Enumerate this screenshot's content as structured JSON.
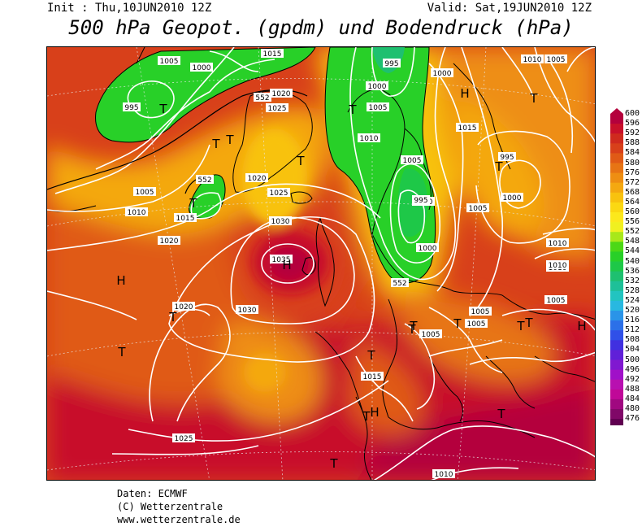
{
  "header": {
    "init": "Init : Thu,10JUN2010 12Z",
    "valid": "Valid: Sat,19JUN2010 12Z",
    "title": "500 hPa Geopot. (gpdm) und Bodendruck (hPa)"
  },
  "legend": {
    "values": [
      "600",
      "596",
      "592",
      "588",
      "584",
      "580",
      "576",
      "572",
      "568",
      "564",
      "560",
      "556",
      "552",
      "548",
      "544",
      "540",
      "536",
      "532",
      "528",
      "524",
      "520",
      "516",
      "512",
      "508",
      "504",
      "500",
      "496",
      "492",
      "488",
      "484",
      "480",
      "476"
    ],
    "colors": [
      "#b4003c",
      "#c8102a",
      "#cf2a1e",
      "#d8401a",
      "#e05a16",
      "#e77414",
      "#ee8e12",
      "#f4a810",
      "#f8c20e",
      "#fbd812",
      "#fce81c",
      "#f0f020",
      "#a8e81a",
      "#4cd816",
      "#28d028",
      "#1ec848",
      "#1ec070",
      "#1ec098",
      "#22c4c0",
      "#28b8e0",
      "#2a94e8",
      "#2c70e8",
      "#3050e8",
      "#4030e0",
      "#6020d8",
      "#8018d0",
      "#a010c8",
      "#b810b0",
      "#c00898",
      "#a00880",
      "#800868",
      "#600050"
    ]
  },
  "map": {
    "pressure_labels": [
      {
        "text": "1005"
      },
      {
        "text": "1000"
      },
      {
        "text": "1015"
      },
      {
        "text": "995"
      },
      {
        "text": "1020"
      },
      {
        "text": "1025"
      },
      {
        "text": "552"
      },
      {
        "text": "552"
      },
      {
        "text": "1000"
      },
      {
        "text": "1005"
      },
      {
        "text": "1010"
      },
      {
        "text": "1015"
      },
      {
        "text": "1020"
      },
      {
        "text": "1025"
      },
      {
        "text": "1030"
      },
      {
        "text": "1035"
      },
      {
        "text": "1030"
      },
      {
        "text": "1020"
      },
      {
        "text": "1020"
      },
      {
        "text": "995"
      },
      {
        "text": "1000"
      },
      {
        "text": "1005"
      },
      {
        "text": "1010"
      },
      {
        "text": "1005"
      },
      {
        "text": "995"
      },
      {
        "text": "1000"
      },
      {
        "text": "1000"
      },
      {
        "text": "552"
      },
      {
        "text": "1015"
      },
      {
        "text": "1010"
      },
      {
        "text": "1005"
      },
      {
        "text": "995"
      },
      {
        "text": "1000"
      },
      {
        "text": "1005"
      },
      {
        "text": "1010"
      },
      {
        "text": "1010"
      },
      {
        "text": "1005"
      },
      {
        "text": "1005"
      },
      {
        "text": "1005"
      },
      {
        "text": "1005"
      },
      {
        "text": "1015"
      },
      {
        "text": "1025"
      },
      {
        "text": "1010"
      },
      {
        "text": "1010"
      }
    ],
    "markers": [
      {
        "text": "T"
      },
      {
        "text": "T"
      },
      {
        "text": "T"
      },
      {
        "text": "T"
      },
      {
        "text": "H"
      },
      {
        "text": "T"
      },
      {
        "text": "T"
      },
      {
        "text": "H"
      },
      {
        "text": "T"
      },
      {
        "text": "T"
      },
      {
        "text": "H"
      },
      {
        "text": "T"
      },
      {
        "text": "T"
      },
      {
        "text": "T"
      },
      {
        "text": "T"
      },
      {
        "text": "H"
      },
      {
        "text": "T"
      },
      {
        "text": "T"
      },
      {
        "text": "T"
      },
      {
        "text": "H"
      },
      {
        "text": "T"
      },
      {
        "text": "T"
      },
      {
        "text": "T"
      },
      {
        "text": "T"
      }
    ]
  },
  "credits": {
    "line1": "Daten: ECMWF",
    "line2": "(C) Wetterzentrale",
    "line3": "www.wetterzentrale.de"
  }
}
